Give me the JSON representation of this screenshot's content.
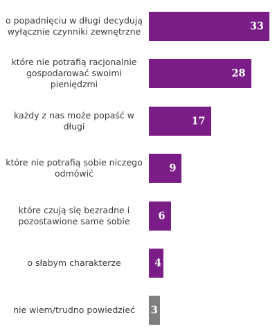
{
  "chart_data": {
    "type": "bar",
    "orientation": "horizontal",
    "categories": [
      "o popadnięciu w długi decydują wyłącznie czynniki zewnętrzne",
      "które nie potrafią racjonalnie gospodarować swoimi pieniędzmi",
      "każdy z nas może popaść w długi",
      "które nie potrafią sobie niczego odmówić",
      "które czują się bezradne i pozostawione same sobie",
      "o słabym charakterze",
      "nie wiem/trudno powiedzieć"
    ],
    "values": [
      33,
      28,
      17,
      9,
      6,
      4,
      3
    ],
    "colors": [
      "#7b1d86",
      "#7b1d86",
      "#7b1d86",
      "#7b1d86",
      "#7b1d86",
      "#7b1d86",
      "#7f7f7f"
    ],
    "xlim": [
      0,
      33
    ],
    "grid": false,
    "legend": "none"
  }
}
